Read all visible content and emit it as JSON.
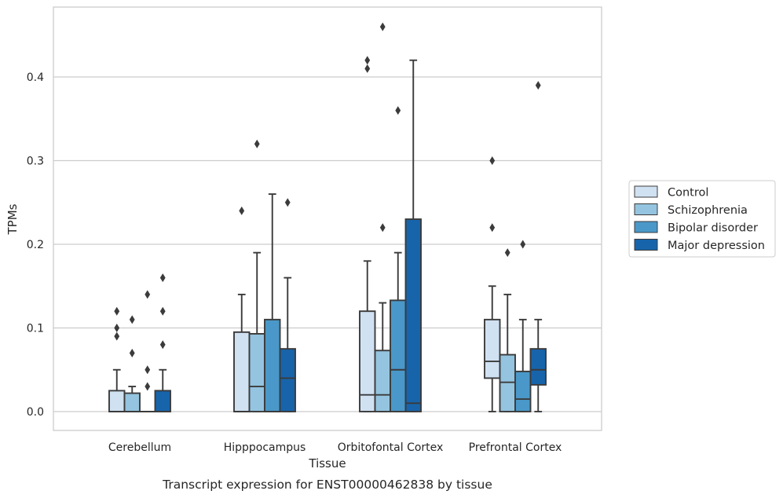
{
  "chart_data": {
    "type": "boxplot",
    "title": "",
    "caption": "Transcript expression for ENST00000462838 by tissue",
    "xlabel": "Tissue",
    "ylabel": "TPMs",
    "ylim": [
      -0.022,
      0.48
    ],
    "yticks": [
      0.0,
      0.1,
      0.2,
      0.3,
      0.4
    ],
    "ytick_labels": [
      "0.0",
      "0.1",
      "0.2",
      "0.3",
      "0.4"
    ],
    "grid": "horizontal",
    "legend_position": "right",
    "categories": [
      "Cerebellum",
      "Hipppocampus",
      "Orbitofontal Cortex",
      "Prefrontal Cortex"
    ],
    "series": [
      {
        "name": "Control",
        "color": "#d0e1f2",
        "boxes": [
          {
            "whislo": 0.0,
            "q1": 0.0,
            "med": 0.0,
            "q3": 0.025,
            "whishi": 0.05,
            "fliers": [
              0.09,
              0.1,
              0.12
            ]
          },
          {
            "whislo": 0.0,
            "q1": 0.0,
            "med": 0.0,
            "q3": 0.095,
            "whishi": 0.14,
            "fliers": [
              0.24
            ]
          },
          {
            "whislo": 0.0,
            "q1": 0.0,
            "med": 0.02,
            "q3": 0.12,
            "whishi": 0.18,
            "fliers": [
              0.41,
              0.42
            ]
          },
          {
            "whislo": 0.0,
            "q1": 0.04,
            "med": 0.06,
            "q3": 0.11,
            "whishi": 0.15,
            "fliers": [
              0.22,
              0.3
            ]
          }
        ]
      },
      {
        "name": "Schizophrenia",
        "color": "#94c4df",
        "boxes": [
          {
            "whislo": 0.0,
            "q1": 0.0,
            "med": 0.0,
            "q3": 0.022,
            "whishi": 0.03,
            "fliers": [
              0.07,
              0.11
            ]
          },
          {
            "whislo": 0.0,
            "q1": 0.0,
            "med": 0.03,
            "q3": 0.093,
            "whishi": 0.19,
            "fliers": [
              0.32
            ]
          },
          {
            "whislo": 0.0,
            "q1": 0.0,
            "med": 0.02,
            "q3": 0.073,
            "whishi": 0.13,
            "fliers": [
              0.22,
              0.46
            ]
          },
          {
            "whislo": 0.0,
            "q1": 0.0,
            "med": 0.035,
            "q3": 0.068,
            "whishi": 0.14,
            "fliers": [
              0.19
            ]
          }
        ]
      },
      {
        "name": "Bipolar disorder",
        "color": "#4a98c9",
        "boxes": [
          {
            "whislo": 0.0,
            "q1": 0.0,
            "med": 0.0,
            "q3": 0.0,
            "whishi": 0.0,
            "fliers": [
              0.03,
              0.05,
              0.14
            ]
          },
          {
            "whislo": 0.0,
            "q1": 0.0,
            "med": 0.0,
            "q3": 0.11,
            "whishi": 0.26,
            "fliers": []
          },
          {
            "whislo": 0.0,
            "q1": 0.0,
            "med": 0.05,
            "q3": 0.133,
            "whishi": 0.19,
            "fliers": [
              0.36
            ]
          },
          {
            "whislo": 0.0,
            "q1": 0.0,
            "med": 0.015,
            "q3": 0.048,
            "whishi": 0.11,
            "fliers": [
              0.2
            ]
          }
        ]
      },
      {
        "name": "Major depression",
        "color": "#1764ab",
        "boxes": [
          {
            "whislo": 0.0,
            "q1": 0.0,
            "med": 0.0,
            "q3": 0.025,
            "whishi": 0.05,
            "fliers": [
              0.08,
              0.12,
              0.16
            ]
          },
          {
            "whislo": 0.0,
            "q1": 0.0,
            "med": 0.04,
            "q3": 0.075,
            "whishi": 0.16,
            "fliers": [
              0.25
            ]
          },
          {
            "whislo": 0.0,
            "q1": 0.0,
            "med": 0.01,
            "q3": 0.23,
            "whishi": 0.42,
            "fliers": []
          },
          {
            "whislo": 0.0,
            "q1": 0.032,
            "med": 0.05,
            "q3": 0.075,
            "whishi": 0.11,
            "fliers": [
              0.39
            ]
          }
        ]
      }
    ]
  }
}
